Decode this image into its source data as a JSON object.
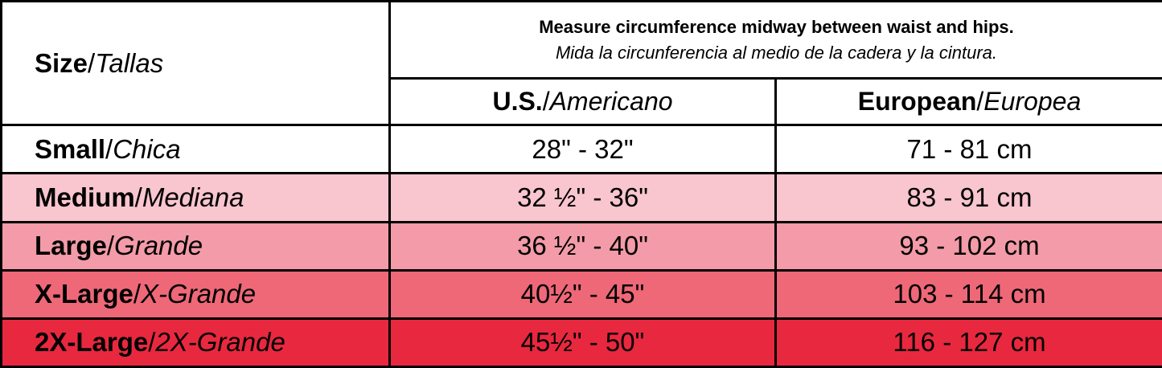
{
  "separator": "/",
  "header": {
    "size": {
      "en": "Size",
      "es": "Tallas"
    },
    "note": {
      "en": "Measure circumference midway between waist and hips.",
      "es": "Mida la circunferencia al medio de la cadera y la cintura."
    },
    "columns": [
      {
        "en": "U.S.",
        "es": "Americano"
      },
      {
        "en": "European",
        "es": "Europea"
      }
    ]
  },
  "rows": [
    {
      "en": "Small",
      "es": "Chica",
      "us": "28\" - 32\"",
      "eu": "71 - 81 cm",
      "color": "#ffffff"
    },
    {
      "en": "Medium",
      "es": "Mediana",
      "us": "32 ½\" - 36\"",
      "eu": "83 - 91 cm",
      "color": "#f9c5cf"
    },
    {
      "en": "Large",
      "es": "Grande",
      "us": "36 ½\" - 40\"",
      "eu": "93 - 102 cm",
      "color": "#f39ba8"
    },
    {
      "en": "X-Large",
      "es": "X-Grande",
      "us": "40½\" - 45\"",
      "eu": "103 - 114 cm",
      "color": "#ee6878"
    },
    {
      "en": "2X-Large",
      "es": "2X-Grande",
      "us": "45½\" - 50\"",
      "eu": "116 - 127 cm",
      "color": "#e8283f"
    }
  ]
}
